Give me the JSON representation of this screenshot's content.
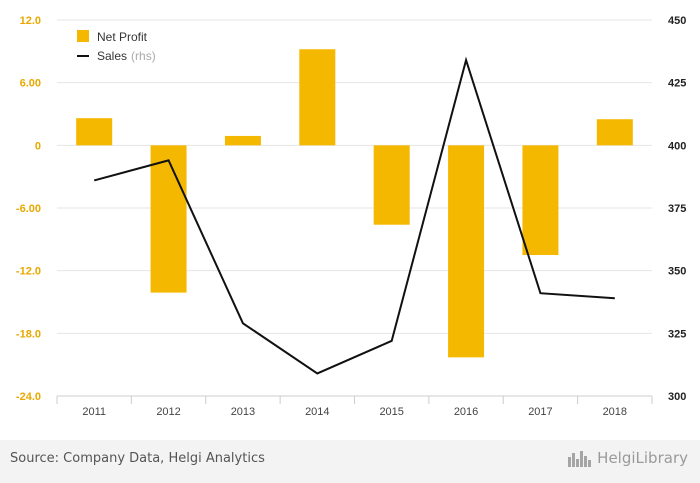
{
  "chart_data": {
    "type": "bar",
    "title": "",
    "categories": [
      "2011",
      "2012",
      "2013",
      "2014",
      "2015",
      "2016",
      "2017",
      "2018"
    ],
    "series": [
      {
        "name": "Net Profit",
        "type": "bar",
        "axis": "left",
        "values": [
          2.6,
          -14.1,
          0.9,
          9.2,
          -7.6,
          -20.3,
          -10.5,
          2.5
        ]
      },
      {
        "name": "Sales",
        "type": "line",
        "axis": "right",
        "values": [
          386,
          394,
          329,
          309,
          322,
          434,
          341,
          339
        ]
      }
    ],
    "y_left": {
      "ylim": [
        -24,
        12
      ],
      "ticks": [
        "12.0",
        "6.00",
        "0",
        "-6.00",
        "-12.0",
        "-18.0",
        "-24.0"
      ],
      "tick_values": [
        12,
        6,
        0,
        -6,
        -12,
        -18,
        -24
      ]
    },
    "y_right": {
      "ylim": [
        300,
        450
      ],
      "ticks": [
        "450",
        "425",
        "400",
        "375",
        "350",
        "325",
        "300"
      ],
      "tick_values": [
        450,
        425,
        400,
        375,
        350,
        325,
        300
      ]
    },
    "legend": {
      "placement": "top-left",
      "items": [
        {
          "label": "Net Profit",
          "suffix": ""
        },
        {
          "label": "Sales",
          "suffix": "(rhs)"
        }
      ]
    },
    "grid": true,
    "colors": {
      "bar": "#F5B800",
      "line": "#111111",
      "left_tick": "#E8A800",
      "right_tick": "#222222"
    }
  },
  "footer": {
    "source": "Source: Company Data, Helgi Analytics",
    "brand": "HelgiLibrary"
  }
}
